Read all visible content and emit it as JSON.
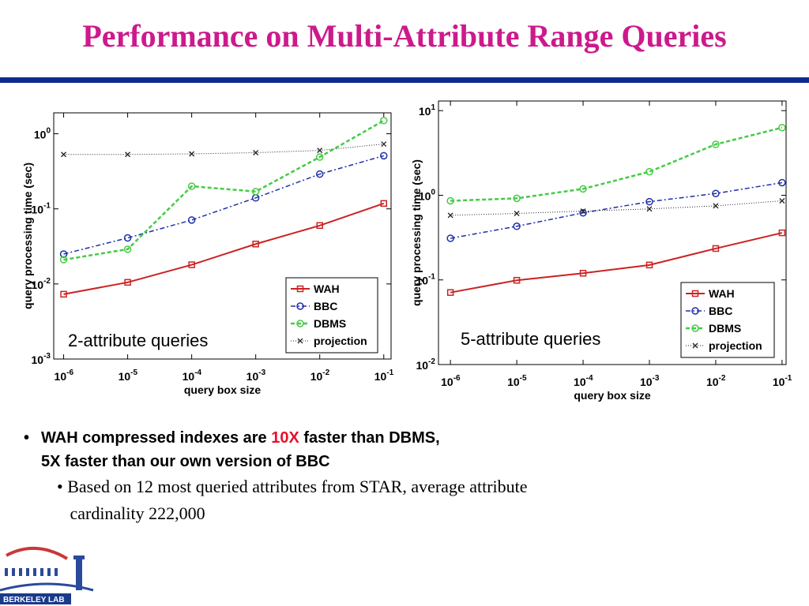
{
  "title": "Performance on Multi-Attribute Range Queries",
  "chart_data": [
    {
      "type": "line",
      "log_x": true,
      "log_y": true,
      "x_label": "query box size",
      "y_label": "query processing time (sec)",
      "annotation": "2-attribute queries",
      "legend": "lower right",
      "x": [
        1e-06,
        1e-05,
        0.0001,
        0.001,
        0.01,
        0.1
      ],
      "xlim": [
        7e-07,
        0.13
      ],
      "ylim": [
        0.001,
        1.9
      ],
      "xticks": [
        {
          "value": 1e-06,
          "label": "10",
          "sup": "-6"
        },
        {
          "value": 1e-05,
          "label": "10",
          "sup": "-5"
        },
        {
          "value": 0.0001,
          "label": "10",
          "sup": "-4"
        },
        {
          "value": 0.001,
          "label": "10",
          "sup": "-3"
        },
        {
          "value": 0.01,
          "label": "10",
          "sup": "-2"
        },
        {
          "value": 0.1,
          "label": "10",
          "sup": "-1"
        }
      ],
      "yticks": [
        {
          "value": 0.001,
          "label": "10",
          "sup": "-3"
        },
        {
          "value": 0.01,
          "label": "10",
          "sup": "-2"
        },
        {
          "value": 0.1,
          "label": "10",
          "sup": "-1"
        },
        {
          "value": 1,
          "label": "10",
          "sup": "0"
        }
      ],
      "series": [
        {
          "name": "WAH",
          "color": "#cc2222",
          "values": [
            0.0073,
            0.0105,
            0.018,
            0.034,
            0.06,
            0.118
          ]
        },
        {
          "name": "BBC",
          "color": "#1f2fa8",
          "values": [
            0.025,
            0.041,
            0.071,
            0.14,
            0.29,
            0.51
          ]
        },
        {
          "name": "DBMS",
          "color": "#44cc44",
          "values": [
            0.021,
            0.029,
            0.2,
            0.17,
            0.49,
            1.5
          ]
        },
        {
          "name": "projection",
          "color": "#222222",
          "values": [
            0.53,
            0.53,
            0.54,
            0.56,
            0.6,
            0.73
          ]
        }
      ]
    },
    {
      "type": "line",
      "log_x": true,
      "log_y": true,
      "x_label": "query box size",
      "y_label": "query processing time (sec)",
      "annotation": "5-attribute queries",
      "legend": "lower right",
      "x": [
        1e-06,
        1e-05,
        0.0001,
        0.001,
        0.01,
        0.1
      ],
      "xlim": [
        6.6e-07,
        0.115
      ],
      "ylim": [
        0.01,
        13
      ],
      "xticks": [
        {
          "value": 1e-06,
          "label": "10",
          "sup": "-6"
        },
        {
          "value": 1e-05,
          "label": "10",
          "sup": "-5"
        },
        {
          "value": 0.0001,
          "label": "10",
          "sup": "-4"
        },
        {
          "value": 0.001,
          "label": "10",
          "sup": "-3"
        },
        {
          "value": 0.01,
          "label": "10",
          "sup": "-2"
        },
        {
          "value": 0.1,
          "label": "10",
          "sup": "-1"
        }
      ],
      "yticks": [
        {
          "value": 0.01,
          "label": "10",
          "sup": "-2"
        },
        {
          "value": 0.1,
          "label": "10",
          "sup": "-1"
        },
        {
          "value": 1,
          "label": "10",
          "sup": "0"
        },
        {
          "value": 10,
          "label": "10",
          "sup": "1"
        }
      ],
      "series": [
        {
          "name": "WAH",
          "color": "#cc2222",
          "values": [
            0.071,
            0.099,
            0.12,
            0.15,
            0.235,
            0.36
          ]
        },
        {
          "name": "BBC",
          "color": "#1f2fa8",
          "values": [
            0.31,
            0.43,
            0.62,
            0.84,
            1.05,
            1.41
          ]
        },
        {
          "name": "DBMS",
          "color": "#44cc44",
          "values": [
            0.86,
            0.92,
            1.19,
            1.9,
            4.0,
            6.3
          ]
        },
        {
          "name": "projection",
          "color": "#222222",
          "values": [
            0.58,
            0.61,
            0.65,
            0.69,
            0.75,
            0.86
          ]
        }
      ]
    }
  ],
  "bullet": {
    "before": "WAH compressed indexes are ",
    "highlight": "10X",
    "after": " faster than DBMS,",
    "line2": "5X faster than our own version of BBC"
  },
  "sub_bullet": {
    "line1": "Based on 12 most queried attributes from STAR, average attribute",
    "line2": "cardinality 222,000"
  },
  "logo": "BERKELEY LAB"
}
